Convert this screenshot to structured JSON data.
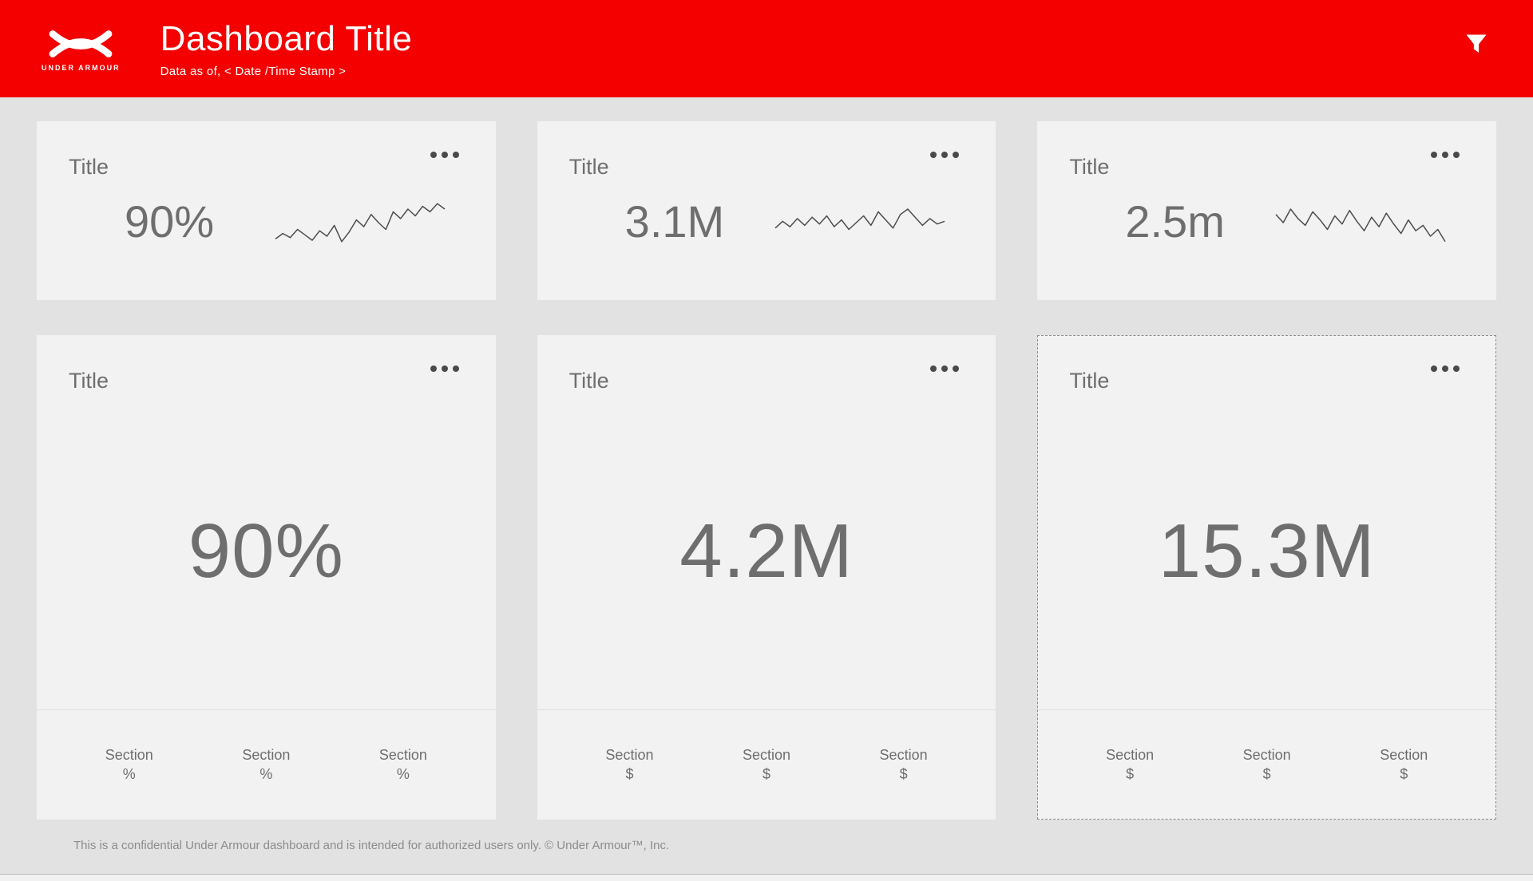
{
  "colors": {
    "header_red": "#f40000",
    "page_bg": "#e2e2e2",
    "card_bg": "#f2f2f2",
    "text_gray": "#6e6e6e",
    "dark_gray": "#4a4a4a",
    "footer_gray": "#8c8c8c",
    "spark_stroke": "#4c4c4c"
  },
  "header": {
    "brand": "UNDER ARMOUR",
    "title": "Dashboard Title",
    "subtitle": "Data as of, < Date /Time Stamp >"
  },
  "kpi_cards": [
    {
      "title": "Title",
      "value": "90%",
      "spark": [
        32,
        28,
        31,
        25,
        29,
        33,
        26,
        30,
        22,
        34,
        27,
        18,
        23,
        14,
        20,
        25,
        12,
        17,
        10,
        15,
        8,
        12,
        6,
        10
      ]
    },
    {
      "title": "Title",
      "value": "3.1M",
      "spark": [
        24,
        19,
        23,
        17,
        22,
        16,
        21,
        15,
        23,
        18,
        25,
        20,
        15,
        22,
        12,
        18,
        24,
        14,
        10,
        16,
        22,
        17,
        21,
        19
      ]
    },
    {
      "title": "Title",
      "value": "2.5m",
      "spark": [
        14,
        20,
        10,
        17,
        22,
        12,
        18,
        25,
        15,
        21,
        11,
        19,
        26,
        16,
        23,
        13,
        21,
        28,
        18,
        26,
        22,
        30,
        25,
        34
      ]
    }
  ],
  "big_cards": [
    {
      "title": "Title",
      "value": "90%",
      "sections": [
        {
          "label": "Section",
          "unit": "%"
        },
        {
          "label": "Section",
          "unit": "%"
        },
        {
          "label": "Section",
          "unit": "%"
        }
      ]
    },
    {
      "title": "Title",
      "value": "4.2M",
      "sections": [
        {
          "label": "Section",
          "unit": "$"
        },
        {
          "label": "Section",
          "unit": "$"
        },
        {
          "label": "Section",
          "unit": "$"
        }
      ]
    },
    {
      "title": "Title",
      "value": "15.3M",
      "sections": [
        {
          "label": "Section",
          "unit": "$"
        },
        {
          "label": "Section",
          "unit": "$"
        },
        {
          "label": "Section",
          "unit": "$"
        }
      ]
    }
  ],
  "footer": "This is a confidential Under Armour dashboard and is intended for authorized users only.  © Under Armour™, Inc."
}
